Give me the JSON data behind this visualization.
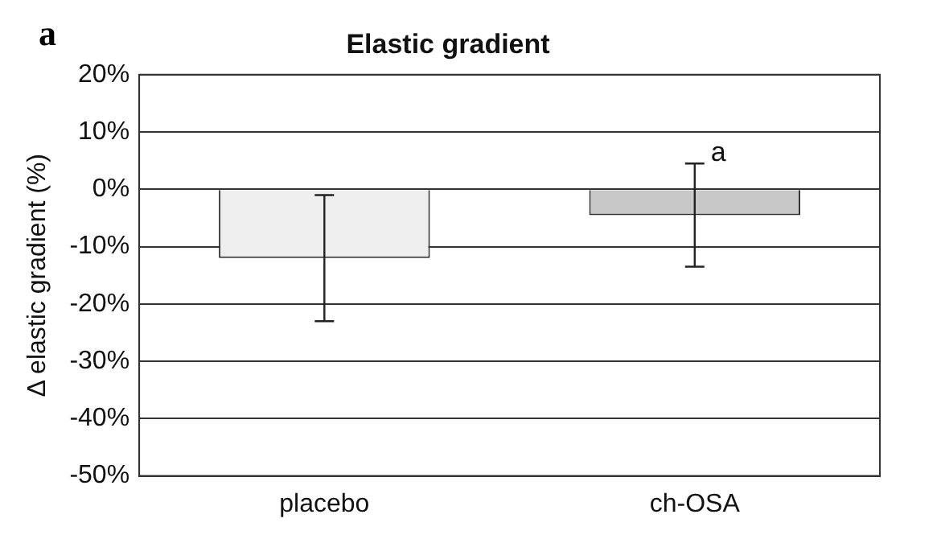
{
  "chart_data": {
    "type": "bar",
    "title": "Elastic gradient",
    "ylabel": "Δ elastic gradient (%)",
    "categories": [
      "placebo",
      "ch-OSA"
    ],
    "values": [
      -12,
      -4.5
    ],
    "colors": [
      "#efefef",
      "#c8c8c8"
    ],
    "errors": [
      11,
      9
    ],
    "ylim": [
      -50,
      20
    ],
    "yticks": [
      {
        "value": -50,
        "label": "-50%"
      },
      {
        "value": -40,
        "label": "-40%"
      },
      {
        "value": -30,
        "label": "-30%"
      },
      {
        "value": -20,
        "label": "-20%"
      },
      {
        "value": -10,
        "label": "-10%"
      },
      {
        "value": 0,
        "label": "0%"
      },
      {
        "value": 10,
        "label": "10%"
      },
      {
        "value": 20,
        "label": "20%"
      }
    ],
    "grid": "y",
    "legend": false,
    "annotations": [
      "a",
      {
        "text": "a",
        "x": "ch-OSA",
        "y": 4.5
      }
    ]
  }
}
